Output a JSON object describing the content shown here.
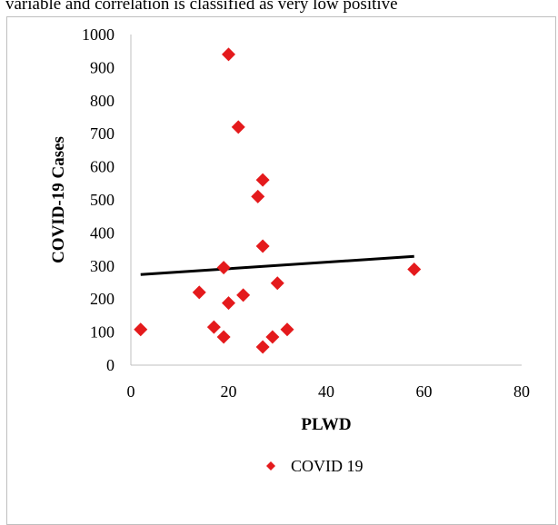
{
  "header_text": "variable and correlation is classified as very low positive",
  "chart_data": {
    "type": "scatter",
    "xlabel": "PLWD",
    "ylabel": "COVID-19 Cases",
    "xlim": [
      0,
      80
    ],
    "ylim": [
      0,
      1000
    ],
    "x_ticks": [
      0,
      20,
      40,
      60,
      80
    ],
    "y_ticks": [
      0,
      100,
      200,
      300,
      400,
      500,
      600,
      700,
      800,
      900,
      1000
    ],
    "series": [
      {
        "name": "COVID 19",
        "color": "#e41a1c",
        "marker": "diamond",
        "points": [
          [
            2,
            108
          ],
          [
            14,
            220
          ],
          [
            17,
            115
          ],
          [
            19,
            85
          ],
          [
            19,
            295
          ],
          [
            20,
            188
          ],
          [
            20,
            940
          ],
          [
            22,
            720
          ],
          [
            23,
            212
          ],
          [
            26,
            510
          ],
          [
            27,
            560
          ],
          [
            27,
            360
          ],
          [
            27,
            55
          ],
          [
            29,
            85
          ],
          [
            30,
            248
          ],
          [
            32,
            108
          ],
          [
            58,
            290
          ]
        ]
      }
    ],
    "trendline": {
      "color": "#000000",
      "x": [
        2,
        58
      ],
      "y": [
        274,
        329
      ]
    },
    "legend": {
      "position": "bottom",
      "label": "COVID 19"
    }
  }
}
